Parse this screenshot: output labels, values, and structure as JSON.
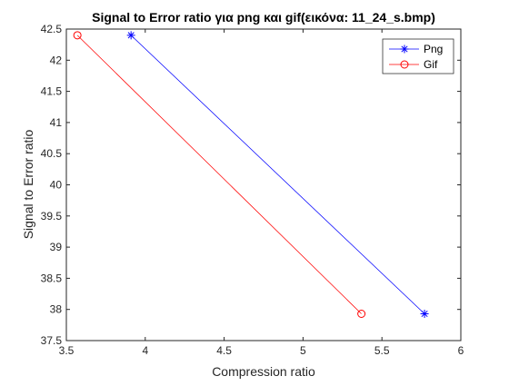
{
  "chart_data": {
    "type": "line",
    "title": "Signal to Error ratio για png και gif(εικόνα: 11_24_s.bmp)",
    "xlabel": "Compression ratio",
    "ylabel": "Signal to Error ratio",
    "xlim": [
      3.5,
      6
    ],
    "ylim": [
      37.5,
      42.5
    ],
    "xticks": [
      "3.5",
      "4",
      "4.5",
      "5",
      "5.5",
      "6"
    ],
    "yticks": [
      "37.5",
      "38",
      "38.5",
      "39",
      "39.5",
      "40",
      "40.5",
      "41",
      "41.5",
      "42",
      "42.5"
    ],
    "grid": false,
    "legend_position": "top-right",
    "series": [
      {
        "name": "Png",
        "color": "#0000ff",
        "marker": "asterisk",
        "points": [
          [
            3.91,
            42.4
          ],
          [
            5.77,
            37.93
          ]
        ]
      },
      {
        "name": "Gif",
        "color": "#ff0000",
        "marker": "circle",
        "points": [
          [
            3.57,
            42.4
          ],
          [
            5.37,
            37.93
          ]
        ]
      }
    ]
  }
}
